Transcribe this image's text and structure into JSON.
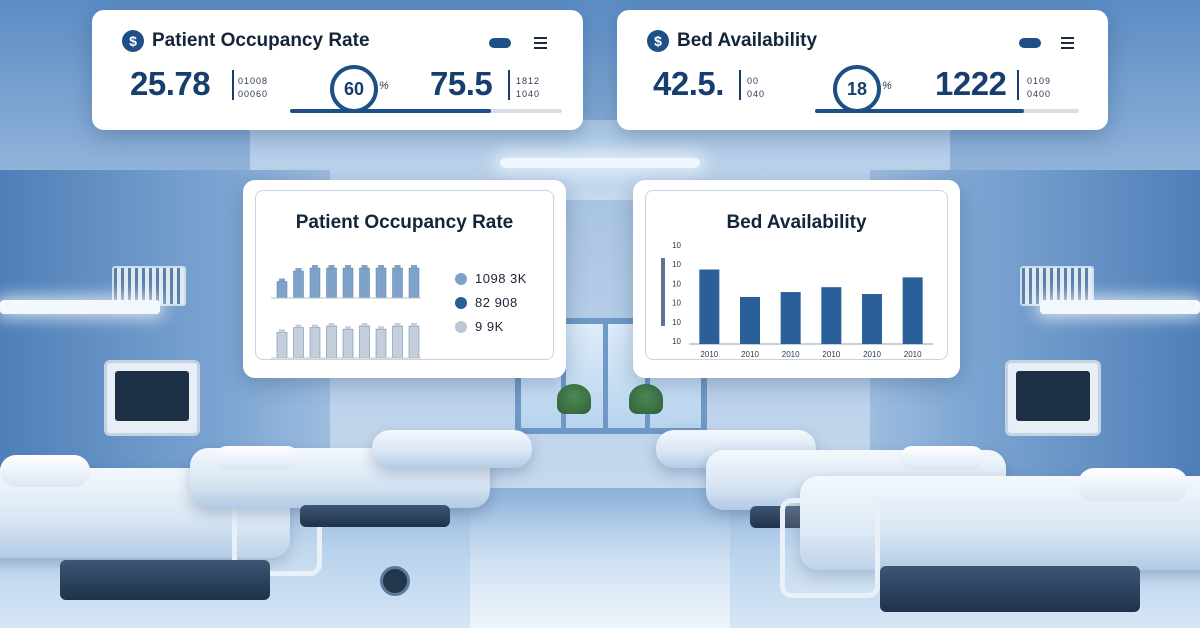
{
  "occupancy_top": {
    "icon": "dollar-icon",
    "icon_glyph": "$",
    "title": "Patient Occupancy Rate",
    "value_left": "25.78",
    "lines_left": [
      "01008",
      "00060"
    ],
    "ring_value": "60",
    "ring_suffix": "%",
    "value_right": "75.5",
    "lines_right": [
      "1812",
      "1040"
    ],
    "progress": 0.74
  },
  "beds_top": {
    "icon": "dollar-icon",
    "icon_glyph": "$",
    "title": "Bed Availability",
    "value_left": "42.5.",
    "lines_left": [
      "00",
      "040"
    ],
    "ring_value": "18",
    "ring_suffix": "%",
    "value_right": "1222",
    "lines_right": [
      "0109",
      "0400"
    ],
    "progress": 0.79
  },
  "occupancy_chart": {
    "title": "Patient Occupancy Rate",
    "legend": [
      {
        "label": "1098 3K",
        "color": "#7fa2c8"
      },
      {
        "label": "82 908",
        "color": "#2b5c93"
      },
      {
        "label": "9 9K",
        "color": "#b9c7d6"
      }
    ],
    "chart_data": {
      "type": "bar",
      "series": [
        {
          "values": [
            0.55,
            0.9,
            1.0,
            1.0,
            1.0,
            1.0,
            1.0,
            1.0,
            1.0
          ],
          "color": "#7fa2c8"
        },
        {
          "values": [
            0.8,
            0.95,
            0.95,
            1.0,
            0.9,
            1.0,
            0.9,
            1.0,
            1.0
          ],
          "color": "#c4cfdb"
        }
      ]
    }
  },
  "beds_chart": {
    "title": "Bed Availability",
    "chart_data": {
      "type": "bar",
      "categories": [
        "2010",
        "2010",
        "2010",
        "2010",
        "2010",
        "2010"
      ],
      "values": [
        76,
        48,
        53,
        58,
        51,
        68
      ],
      "y_ticks": [
        "10",
        "10",
        "10",
        "10",
        "10",
        "10"
      ],
      "ylim": [
        0,
        100
      ],
      "bar_color": "#2b5f9a"
    }
  }
}
